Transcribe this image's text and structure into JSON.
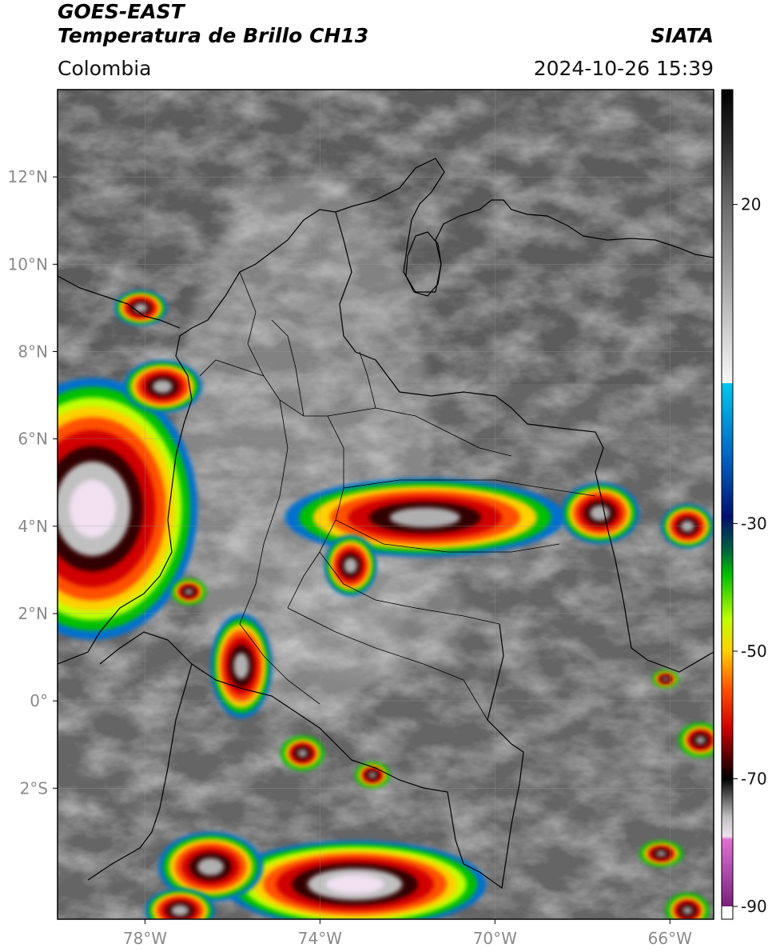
{
  "header": {
    "satellite": "GOES-EAST",
    "product": "Temperatura de Brillo CH13",
    "region": "Colombia",
    "agency": "SIATA",
    "datetime": "2024-10-26 15:39"
  },
  "map": {
    "lon_range": [
      -80,
      -65
    ],
    "lat_range": [
      -5,
      14
    ],
    "lon_ticks": [
      {
        "value": -78,
        "label": "78°W"
      },
      {
        "value": -74,
        "label": "74°W"
      },
      {
        "value": -70,
        "label": "70°W"
      },
      {
        "value": -66,
        "label": "66°W"
      }
    ],
    "lat_ticks": [
      {
        "value": 12,
        "label": "12°N"
      },
      {
        "value": 10,
        "label": "10°N"
      },
      {
        "value": 8,
        "label": "8°N"
      },
      {
        "value": 6,
        "label": "6°N"
      },
      {
        "value": 4,
        "label": "4°N"
      },
      {
        "value": 2,
        "label": "2°N"
      },
      {
        "value": 0,
        "label": "0°"
      },
      {
        "value": -2,
        "label": "2°S"
      }
    ]
  },
  "colorbar": {
    "range": [
      -92,
      38
    ],
    "ticks": [
      {
        "value": 20,
        "label": "20"
      },
      {
        "value": -30,
        "label": "-30"
      },
      {
        "value": -50,
        "label": "-50"
      },
      {
        "value": -70,
        "label": "-70"
      },
      {
        "value": -90,
        "label": "-90"
      }
    ],
    "stops": [
      {
        "value": 38,
        "color": "#000000"
      },
      {
        "value": 30,
        "color": "#2a2a2a"
      },
      {
        "value": 20,
        "color": "#6a6a6a"
      },
      {
        "value": 10,
        "color": "#9a9a9a"
      },
      {
        "value": 0,
        "color": "#d0d0d0"
      },
      {
        "value": -8,
        "color": "#f8f8f8"
      },
      {
        "value": -8.01,
        "color": "#00c8f0"
      },
      {
        "value": -20,
        "color": "#0060c0"
      },
      {
        "value": -29,
        "color": "#001070"
      },
      {
        "value": -34,
        "color": "#006040"
      },
      {
        "value": -38,
        "color": "#00c000"
      },
      {
        "value": -45,
        "color": "#c0ff00"
      },
      {
        "value": -50,
        "color": "#ffd000"
      },
      {
        "value": -56,
        "color": "#ff5000"
      },
      {
        "value": -62,
        "color": "#d00000"
      },
      {
        "value": -68,
        "color": "#300000"
      },
      {
        "value": -70,
        "color": "#000000"
      },
      {
        "value": -76,
        "color": "#c0c0c0"
      },
      {
        "value": -79,
        "color": "#f0e0f0"
      },
      {
        "value": -79.5,
        "color": "#e070d0"
      },
      {
        "value": -86,
        "color": "#a040a0"
      },
      {
        "value": -90,
        "color": "#7a207a"
      },
      {
        "value": -90.01,
        "color": "#ffffff"
      },
      {
        "value": -92,
        "color": "#ffffff"
      }
    ]
  },
  "storms": [
    {
      "lon": -79.2,
      "lat": 4.4,
      "rx": 2.4,
      "ry": 3.0,
      "intensity": "deep"
    },
    {
      "lon": -77.6,
      "lat": 7.2,
      "rx": 0.9,
      "ry": 0.6,
      "intensity": "strong"
    },
    {
      "lon": -78.1,
      "lat": 9.0,
      "rx": 0.6,
      "ry": 0.4,
      "intensity": "strong"
    },
    {
      "lon": -71.6,
      "lat": 4.2,
      "rx": 3.2,
      "ry": 0.9,
      "intensity": "strong"
    },
    {
      "lon": -73.3,
      "lat": 3.1,
      "rx": 0.6,
      "ry": 0.7,
      "intensity": "strong"
    },
    {
      "lon": -67.6,
      "lat": 4.3,
      "rx": 0.9,
      "ry": 0.7,
      "intensity": "strong"
    },
    {
      "lon": -65.6,
      "lat": 4.0,
      "rx": 0.6,
      "ry": 0.5,
      "intensity": "strong"
    },
    {
      "lon": -75.8,
      "lat": 0.8,
      "rx": 0.7,
      "ry": 1.2,
      "intensity": "strong"
    },
    {
      "lon": -73.2,
      "lat": -4.2,
      "rx": 3.0,
      "ry": 1.0,
      "intensity": "deep"
    },
    {
      "lon": -76.5,
      "lat": -3.8,
      "rx": 1.2,
      "ry": 0.8,
      "intensity": "strong"
    },
    {
      "lon": -77.2,
      "lat": -4.8,
      "rx": 0.8,
      "ry": 0.5,
      "intensity": "strong"
    },
    {
      "lon": -65.3,
      "lat": -0.9,
      "rx": 0.5,
      "ry": 0.4,
      "intensity": "moderate"
    },
    {
      "lon": -66.2,
      "lat": -3.5,
      "rx": 0.5,
      "ry": 0.3,
      "intensity": "moderate"
    },
    {
      "lon": -65.6,
      "lat": -4.8,
      "rx": 0.5,
      "ry": 0.4,
      "intensity": "moderate"
    },
    {
      "lon": -74.4,
      "lat": -1.2,
      "rx": 0.5,
      "ry": 0.4,
      "intensity": "moderate"
    },
    {
      "lon": -72.8,
      "lat": -1.7,
      "rx": 0.4,
      "ry": 0.3,
      "intensity": "moderate"
    },
    {
      "lon": -66.1,
      "lat": 0.5,
      "rx": 0.3,
      "ry": 0.2,
      "intensity": "moderate"
    },
    {
      "lon": -77.0,
      "lat": 2.5,
      "rx": 0.4,
      "ry": 0.3,
      "intensity": "moderate"
    }
  ]
}
